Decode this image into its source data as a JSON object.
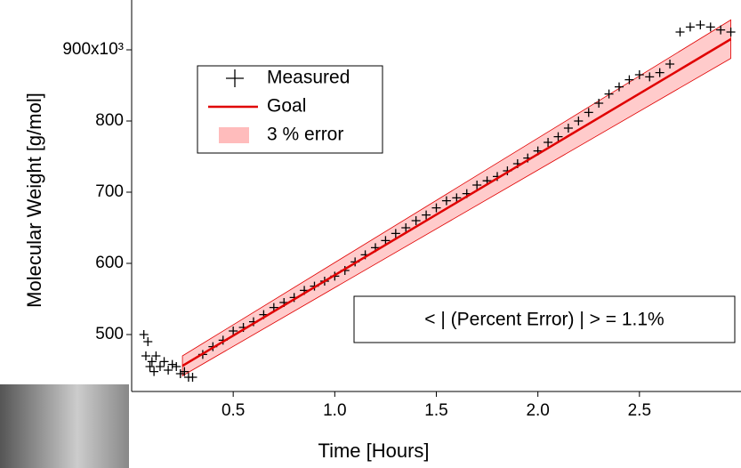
{
  "chart_data": {
    "type": "scatter",
    "x_label": "Time [Hours]",
    "y_label": "Molecular Weight [g/mol]",
    "xlim": [
      0,
      3.0
    ],
    "ylim": [
      420,
      970
    ],
    "xticks": [
      0.5,
      {
        "value": 1.0,
        "label": "1.0"
      },
      1.5,
      {
        "value": 2.0,
        "label": "2.0"
      },
      2.5
    ],
    "yticks": [
      500,
      600,
      700,
      800,
      {
        "value": 900,
        "label": "900x10³"
      }
    ],
    "annotation": "< | (Percent Error) | > = 1.1%",
    "series": [
      {
        "name": "Measured",
        "color": "#000000",
        "x": [
          0.06,
          0.07,
          0.08,
          0.09,
          0.1,
          0.11,
          0.12,
          0.14,
          0.16,
          0.18,
          0.2,
          0.22,
          0.24,
          0.26,
          0.28,
          0.3,
          0.35,
          0.4,
          0.45,
          0.5,
          0.55,
          0.6,
          0.65,
          0.7,
          0.75,
          0.8,
          0.85,
          0.9,
          0.95,
          1.0,
          1.05,
          1.1,
          1.15,
          1.2,
          1.25,
          1.3,
          1.35,
          1.4,
          1.45,
          1.5,
          1.55,
          1.6,
          1.65,
          1.7,
          1.75,
          1.8,
          1.85,
          1.9,
          1.95,
          2.0,
          2.05,
          2.1,
          2.15,
          2.2,
          2.25,
          2.3,
          2.35,
          2.4,
          2.45,
          2.5,
          2.55,
          2.6,
          2.65,
          2.7,
          2.75,
          2.8,
          2.85,
          2.9,
          2.95
        ],
        "values": [
          500,
          470,
          490,
          455,
          462,
          448,
          470,
          455,
          462,
          450,
          458,
          455,
          445,
          448,
          440,
          440,
          472,
          483,
          492,
          505,
          510,
          518,
          528,
          538,
          545,
          552,
          562,
          568,
          575,
          582,
          590,
          602,
          612,
          622,
          632,
          642,
          650,
          660,
          668,
          678,
          688,
          692,
          698,
          710,
          716,
          722,
          730,
          740,
          748,
          758,
          770,
          778,
          790,
          800,
          812,
          825,
          838,
          848,
          858,
          865,
          862,
          868,
          880,
          925,
          932,
          935,
          932,
          928,
          925
        ]
      },
      {
        "name": "Goal",
        "color": "#e00000",
        "x": [
          0.25,
          2.95
        ],
        "values": [
          456,
          915
        ]
      },
      {
        "name": "3 % error",
        "color": "#ffa0a0",
        "x": [
          0.25,
          2.95
        ],
        "lower": [
          442,
          888
        ],
        "upper": [
          470,
          942
        ]
      }
    ]
  }
}
